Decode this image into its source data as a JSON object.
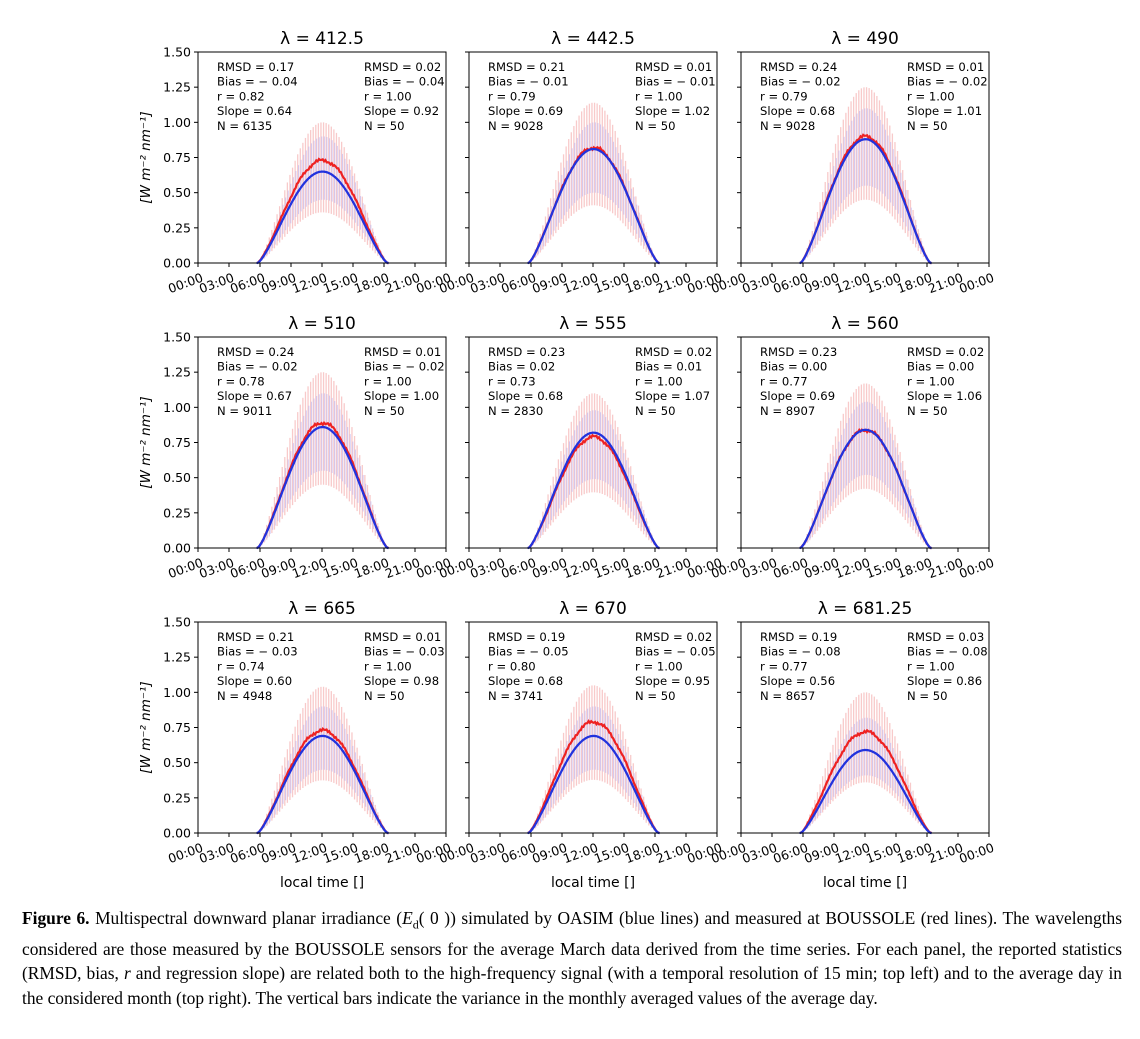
{
  "chart_data": {
    "type": "line",
    "layout": "3x3 small multiples",
    "ylabel": "[W m⁻² nm⁻¹]",
    "xlabel": "local time []",
    "ylim": [
      0,
      1.5
    ],
    "yticks": [
      "0.00",
      "0.25",
      "0.50",
      "0.75",
      "1.00",
      "1.25",
      "1.50"
    ],
    "xticks": [
      "00:00",
      "03:00",
      "06:00",
      "09:00",
      "12:00",
      "15:00",
      "18:00",
      "21:00",
      "00:00"
    ],
    "grid": false,
    "series_colors": {
      "measured": "#ee2222",
      "simulated": "#2233dd"
    },
    "band_colors": {
      "measured": "#f6b8b8",
      "simulated": "#c2b8ee"
    },
    "panels": [
      {
        "title": "λ = 412.5",
        "stats_left": [
          "RMSD = 0.17",
          "Bias = − 0.04",
          "r = 0.82",
          "Slope = 0.64",
          "N = 6135"
        ],
        "stats_right": [
          "RMSD = 0.02",
          "Bias = − 0.04",
          "r = 1.00",
          "Slope = 0.92",
          "N = 50"
        ],
        "measured_peak": 0.73,
        "simulated_peak": 0.65,
        "band_measured_peak": 1.0,
        "band_simulated_peak": 0.9
      },
      {
        "title": "λ = 442.5",
        "stats_left": [
          "RMSD = 0.21",
          "Bias = − 0.01",
          "r = 0.79",
          "Slope = 0.69",
          "N = 9028"
        ],
        "stats_right": [
          "RMSD = 0.01",
          "Bias = − 0.01",
          "r = 1.00",
          "Slope = 1.02",
          "N = 50"
        ],
        "measured_peak": 0.82,
        "simulated_peak": 0.81,
        "band_measured_peak": 1.14,
        "band_simulated_peak": 1.0
      },
      {
        "title": "λ = 490",
        "stats_left": [
          "RMSD = 0.24",
          "Bias = − 0.02",
          "r = 0.79",
          "Slope = 0.68",
          "N = 9028"
        ],
        "stats_right": [
          "RMSD = 0.01",
          "Bias = − 0.02",
          "r = 1.00",
          "Slope = 1.01",
          "N = 50"
        ],
        "measured_peak": 0.9,
        "simulated_peak": 0.88,
        "band_measured_peak": 1.25,
        "band_simulated_peak": 1.1
      },
      {
        "title": "λ = 510",
        "stats_left": [
          "RMSD = 0.24",
          "Bias = − 0.02",
          "r = 0.78",
          "Slope = 0.67",
          "N = 9011"
        ],
        "stats_right": [
          "RMSD = 0.01",
          "Bias = − 0.02",
          "r = 1.00",
          "Slope = 1.00",
          "N = 50"
        ],
        "measured_peak": 0.89,
        "simulated_peak": 0.86,
        "band_measured_peak": 1.25,
        "band_simulated_peak": 1.1
      },
      {
        "title": "λ = 555",
        "stats_left": [
          "RMSD = 0.23",
          "Bias = 0.02",
          "r = 0.73",
          "Slope = 0.68",
          "N = 2830"
        ],
        "stats_right": [
          "RMSD = 0.02",
          "Bias = 0.01",
          "r = 1.00",
          "Slope = 1.07",
          "N = 50"
        ],
        "measured_peak": 0.79,
        "simulated_peak": 0.82,
        "band_measured_peak": 1.1,
        "band_simulated_peak": 0.98
      },
      {
        "title": "λ = 560",
        "stats_left": [
          "RMSD = 0.23",
          "Bias = 0.00",
          "r = 0.77",
          "Slope = 0.69",
          "N = 8907"
        ],
        "stats_right": [
          "RMSD = 0.02",
          "Bias = 0.00",
          "r = 1.00",
          "Slope = 1.06",
          "N = 50"
        ],
        "measured_peak": 0.84,
        "simulated_peak": 0.84,
        "band_measured_peak": 1.17,
        "band_simulated_peak": 1.04
      },
      {
        "title": "λ = 665",
        "stats_left": [
          "RMSD = 0.21",
          "Bias = − 0.03",
          "r = 0.74",
          "Slope = 0.60",
          "N = 4948"
        ],
        "stats_right": [
          "RMSD = 0.01",
          "Bias = − 0.03",
          "r = 1.00",
          "Slope = 0.98",
          "N = 50"
        ],
        "measured_peak": 0.73,
        "simulated_peak": 0.69,
        "band_measured_peak": 1.04,
        "band_simulated_peak": 0.9
      },
      {
        "title": "λ = 670",
        "stats_left": [
          "RMSD = 0.19",
          "Bias = − 0.05",
          "r = 0.80",
          "Slope = 0.68",
          "N = 3741"
        ],
        "stats_right": [
          "RMSD = 0.02",
          "Bias = − 0.05",
          "r = 1.00",
          "Slope = 0.95",
          "N = 50"
        ],
        "measured_peak": 0.79,
        "simulated_peak": 0.69,
        "band_measured_peak": 1.05,
        "band_simulated_peak": 0.9
      },
      {
        "title": "λ = 681.25",
        "stats_left": [
          "RMSD = 0.19",
          "Bias = − 0.08",
          "r = 0.77",
          "Slope = 0.56",
          "N = 8657"
        ],
        "stats_right": [
          "RMSD = 0.03",
          "Bias = − 0.08",
          "r = 1.00",
          "Slope = 0.86",
          "N = 50"
        ],
        "measured_peak": 0.72,
        "simulated_peak": 0.59,
        "band_measured_peak": 1.0,
        "band_simulated_peak": 0.82
      }
    ]
  },
  "caption": {
    "label": "Figure 6.",
    "part1": " Multispectral downward planar irradiance (",
    "symbol": "E",
    "subscript": "d",
    "symbol_arg": "( 0  )",
    "part2": ") simulated by OASIM (blue lines) and measured at BOUSSOLE (red lines). The wavelengths considered are those measured by the BOUSSOLE sensors for the average March data derived from the time series. For each panel, the reported statistics (RMSD, bias, ",
    "r_symbol": "r",
    "part3": " and regression slope) are related both to the high-frequency signal (with a temporal resolution of 15 min; top left) and to the average day in the considered month (top right). The vertical bars indicate the variance in the monthly averaged values of the average day."
  }
}
